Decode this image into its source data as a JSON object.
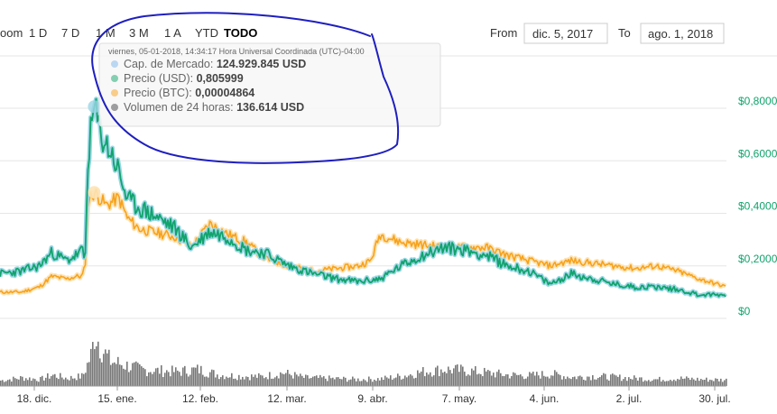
{
  "toolbar": {
    "zoom_label": "oom",
    "ranges": [
      "1 D",
      "7 D",
      "1 M",
      "3 M",
      "1 A",
      "YTD",
      "TODO"
    ],
    "active_range": "TODO",
    "from_label": "From",
    "from_value": "dic. 5, 2017",
    "to_label": "To",
    "to_value": "ago. 1, 2018"
  },
  "tooltip": {
    "title": "viernes, 05-01-2018, 14:34:17 Hora Universal Coordinada (UTC)-04:00",
    "rows": [
      {
        "label": "Cap. de Mercado:",
        "value": "124.929.845 USD",
        "color": "#7cb5ec"
      },
      {
        "label": "Precio (USD):",
        "value": "0,805999",
        "color": "#11a36c"
      },
      {
        "label": "Precio (BTC):",
        "value": "0,00004864",
        "color": "#f7a21b"
      },
      {
        "label": "Volumen de 24 horas:",
        "value": "136.614 USD",
        "color": "#434348"
      }
    ]
  },
  "colors": {
    "usd": "#11a36c",
    "usd_glow": "#9ad6e6",
    "btc": "#f7a21b",
    "btc_glow": "#fde3b6",
    "volume": "#777777",
    "grid": "#e6e6e6",
    "annotation": "#1f1fbf"
  },
  "chart_data": {
    "type": "line",
    "x_ticks": [
      "18. dic.",
      "15. ene.",
      "12. feb.",
      "12. mar.",
      "9. abr.",
      "7. may.",
      "4. jun.",
      "2. jul.",
      "30. jul."
    ],
    "y_ticks": [
      "$0,8000",
      "$0,6000",
      "$0,4000",
      "$0,2000",
      "$0"
    ],
    "ylim": [
      0,
      0.8
    ],
    "x_range": [
      "2017-12-05",
      "2018-08-01"
    ],
    "series": [
      {
        "name": "Precio (USD)",
        "color": "#11a36c",
        "points": [
          [
            "2017-12-05",
            0.17
          ],
          [
            "2017-12-12",
            0.18
          ],
          [
            "2017-12-18",
            0.2
          ],
          [
            "2017-12-22",
            0.25
          ],
          [
            "2017-12-27",
            0.22
          ],
          [
            "2017-12-30",
            0.24
          ],
          [
            "2018-01-01",
            0.26
          ],
          [
            "2018-01-02",
            0.22
          ],
          [
            "2018-01-03",
            0.62
          ],
          [
            "2018-01-04",
            0.72
          ],
          [
            "2018-01-05",
            0.806
          ],
          [
            "2018-01-07",
            0.7
          ],
          [
            "2018-01-09",
            0.66
          ],
          [
            "2018-01-11",
            0.62
          ],
          [
            "2018-01-13",
            0.56
          ],
          [
            "2018-01-16",
            0.45
          ],
          [
            "2018-01-20",
            0.42
          ],
          [
            "2018-01-25",
            0.39
          ],
          [
            "2018-02-01",
            0.34
          ],
          [
            "2018-02-06",
            0.27
          ],
          [
            "2018-02-12",
            0.33
          ],
          [
            "2018-02-18",
            0.31
          ],
          [
            "2018-02-24",
            0.26
          ],
          [
            "2018-03-02",
            0.25
          ],
          [
            "2018-03-10",
            0.2
          ],
          [
            "2018-03-18",
            0.17
          ],
          [
            "2018-03-26",
            0.15
          ],
          [
            "2018-04-02",
            0.14
          ],
          [
            "2018-04-09",
            0.15
          ],
          [
            "2018-04-16",
            0.2
          ],
          [
            "2018-04-23",
            0.24
          ],
          [
            "2018-04-30",
            0.27
          ],
          [
            "2018-05-07",
            0.26
          ],
          [
            "2018-05-14",
            0.24
          ],
          [
            "2018-05-21",
            0.2
          ],
          [
            "2018-05-28",
            0.18
          ],
          [
            "2018-06-04",
            0.13
          ],
          [
            "2018-06-11",
            0.17
          ],
          [
            "2018-06-18",
            0.15
          ],
          [
            "2018-06-25",
            0.13
          ],
          [
            "2018-07-02",
            0.12
          ],
          [
            "2018-07-09",
            0.12
          ],
          [
            "2018-07-16",
            0.11
          ],
          [
            "2018-07-23",
            0.09
          ],
          [
            "2018-08-01",
            0.09
          ]
        ]
      },
      {
        "name": "Precio (BTC)",
        "color": "#f7a21b",
        "points": [
          [
            "2017-12-05",
            0.1
          ],
          [
            "2017-12-12",
            0.1
          ],
          [
            "2017-12-18",
            0.12
          ],
          [
            "2017-12-22",
            0.16
          ],
          [
            "2017-12-27",
            0.15
          ],
          [
            "2017-12-30",
            0.16
          ],
          [
            "2018-01-01",
            0.16
          ],
          [
            "2018-01-02",
            0.2
          ],
          [
            "2018-01-03",
            0.45
          ],
          [
            "2018-01-05",
            0.48
          ],
          [
            "2018-01-09",
            0.43
          ],
          [
            "2018-01-13",
            0.46
          ],
          [
            "2018-01-16",
            0.38
          ],
          [
            "2018-01-20",
            0.34
          ],
          [
            "2018-02-01",
            0.31
          ],
          [
            "2018-02-06",
            0.27
          ],
          [
            "2018-02-12",
            0.36
          ],
          [
            "2018-02-18",
            0.32
          ],
          [
            "2018-02-24",
            0.29
          ],
          [
            "2018-03-02",
            0.23
          ],
          [
            "2018-03-10",
            0.2
          ],
          [
            "2018-03-18",
            0.18
          ],
          [
            "2018-03-26",
            0.19
          ],
          [
            "2018-04-02",
            0.2
          ],
          [
            "2018-04-06",
            0.22
          ],
          [
            "2018-04-09",
            0.32
          ],
          [
            "2018-04-16",
            0.29
          ],
          [
            "2018-04-23",
            0.28
          ],
          [
            "2018-04-30",
            0.27
          ],
          [
            "2018-05-07",
            0.27
          ],
          [
            "2018-05-14",
            0.27
          ],
          [
            "2018-05-21",
            0.24
          ],
          [
            "2018-05-28",
            0.22
          ],
          [
            "2018-06-04",
            0.2
          ],
          [
            "2018-06-11",
            0.22
          ],
          [
            "2018-06-18",
            0.21
          ],
          [
            "2018-06-25",
            0.2
          ],
          [
            "2018-07-02",
            0.19
          ],
          [
            "2018-07-09",
            0.2
          ],
          [
            "2018-07-16",
            0.18
          ],
          [
            "2018-07-23",
            0.15
          ],
          [
            "2018-08-01",
            0.12
          ]
        ]
      },
      {
        "name": "Volumen de 24 horas",
        "color": "#777777",
        "type": "area",
        "points": [
          [
            "2017-12-05",
            0.1
          ],
          [
            "2017-12-12",
            0.15
          ],
          [
            "2017-12-18",
            0.12
          ],
          [
            "2017-12-22",
            0.2
          ],
          [
            "2017-12-27",
            0.14
          ],
          [
            "2018-01-01",
            0.18
          ],
          [
            "2018-01-04",
            0.6
          ],
          [
            "2018-01-05",
            1.0
          ],
          [
            "2018-01-07",
            0.7
          ],
          [
            "2018-01-10",
            0.45
          ],
          [
            "2018-01-15",
            0.38
          ],
          [
            "2018-01-20",
            0.3
          ],
          [
            "2018-01-25",
            0.28
          ],
          [
            "2018-02-01",
            0.26
          ],
          [
            "2018-02-08",
            0.3
          ],
          [
            "2018-02-15",
            0.2
          ],
          [
            "2018-02-22",
            0.18
          ],
          [
            "2018-03-01",
            0.17
          ],
          [
            "2018-03-08",
            0.24
          ],
          [
            "2018-03-15",
            0.15
          ],
          [
            "2018-03-22",
            0.14
          ],
          [
            "2018-04-01",
            0.12
          ],
          [
            "2018-04-09",
            0.13
          ],
          [
            "2018-04-16",
            0.18
          ],
          [
            "2018-04-23",
            0.26
          ],
          [
            "2018-04-30",
            0.3
          ],
          [
            "2018-05-07",
            0.28
          ],
          [
            "2018-05-14",
            0.24
          ],
          [
            "2018-05-21",
            0.2
          ],
          [
            "2018-05-28",
            0.19
          ],
          [
            "2018-06-04",
            0.22
          ],
          [
            "2018-06-11",
            0.16
          ],
          [
            "2018-06-18",
            0.18
          ],
          [
            "2018-06-25",
            0.16
          ],
          [
            "2018-07-02",
            0.14
          ],
          [
            "2018-07-09",
            0.12
          ],
          [
            "2018-07-16",
            0.14
          ],
          [
            "2018-07-23",
            0.12
          ],
          [
            "2018-08-01",
            0.11
          ]
        ]
      }
    ],
    "highlight": {
      "date": "2018-01-05",
      "usd": 0.806,
      "btc": 0.48
    },
    "grid": true
  }
}
